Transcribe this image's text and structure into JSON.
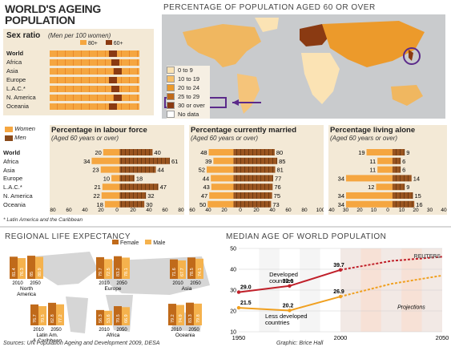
{
  "title_line1": "WORLD'S AGEING",
  "title_line2": "POPULATION",
  "map": {
    "title": "PERCENTAGE OF POPULATION AGED 60 OR OVER",
    "legend": [
      {
        "label": "0 to 9",
        "color": "#fbe3b4"
      },
      {
        "label": "10 to 19",
        "color": "#f7c069"
      },
      {
        "label": "20 to 24",
        "color": "#ec9a2b"
      },
      {
        "label": "25 to 29",
        "color": "#c06a1a"
      },
      {
        "label": "30 or over",
        "color": "#8a3a12"
      },
      {
        "label": "No data",
        "color": "#ffffff"
      }
    ]
  },
  "sex_ratio": {
    "title": "Sex ratio",
    "subtitle": "(Men per 100 women)",
    "legend": [
      "80+",
      "60+"
    ],
    "regions": [
      "World",
      "Africa",
      "Asia",
      "Europe",
      "L.A.C.*",
      "N. America",
      "Oceania"
    ]
  },
  "legend_gender": {
    "women": "Women",
    "men": "Men"
  },
  "chart_data": [
    {
      "type": "bar",
      "title": "Percentage in labour force",
      "subtitle": "(Aged 60 years or over)",
      "categories": [
        "World",
        "Africa",
        "Asia",
        "Europe",
        "L.A.C.*",
        "N. America",
        "Oceania"
      ],
      "series": [
        {
          "name": "Women",
          "values": [
            20,
            34,
            23,
            10,
            21,
            22,
            18
          ]
        },
        {
          "name": "Men",
          "values": [
            40,
            61,
            44,
            18,
            47,
            32,
            30
          ]
        }
      ],
      "xticks": [
        "80",
        "60",
        "40",
        "20",
        "0",
        "20",
        "40",
        "60",
        "80"
      ]
    },
    {
      "type": "bar",
      "title": "Percentage currently married",
      "subtitle": "(Aged 60 years or over)",
      "categories": [
        "World",
        "Africa",
        "Asia",
        "Europe",
        "L.A.C.*",
        "N. America",
        "Oceania"
      ],
      "series": [
        {
          "name": "Women",
          "values": [
            48,
            39,
            52,
            44,
            43,
            47,
            50
          ]
        },
        {
          "name": "Men",
          "values": [
            80,
            85,
            81,
            77,
            76,
            75,
            73
          ]
        }
      ],
      "xticks": [
        "60",
        "40",
        "20",
        "0",
        "20",
        "40",
        "60",
        "80",
        "100"
      ]
    },
    {
      "type": "bar",
      "title": "Percentage living alone",
      "subtitle": "(Aged 60 years or over)",
      "categories": [
        "World",
        "Africa",
        "Asia",
        "Europe",
        "L.A.C.*",
        "N. America",
        "Oceania"
      ],
      "series": [
        {
          "name": "Women",
          "values": [
            19,
            11,
            11,
            34,
            12,
            34,
            34
          ]
        },
        {
          "name": "Men",
          "values": [
            9,
            6,
            6,
            14,
            9,
            15,
            16
          ]
        }
      ],
      "xticks": [
        "40",
        "30",
        "20",
        "10",
        "0",
        "10",
        "20",
        "30",
        "40"
      ]
    },
    {
      "type": "bar",
      "title": "REGIONAL LIFE EXPECTANCY",
      "legend": [
        "Female",
        "Male"
      ],
      "groups": [
        {
          "region": "North America",
          "years": [
            "2010",
            "2050"
          ],
          "female": [
            81.4,
            85.0
          ],
          "male": [
            76.3,
            80.9
          ]
        },
        {
          "region": "Europe",
          "years": [
            "2010",
            "2050"
          ],
          "female": [
            79.7,
            83.2
          ],
          "male": [
            72.5,
            78.1
          ]
        },
        {
          "region": "Asia",
          "years": [
            "2010",
            "2050"
          ],
          "female": [
            71.6,
            78.5
          ],
          "male": [
            67.7,
            74.1
          ]
        },
        {
          "region": "Latin Am. & Caribbean",
          "years": [
            "2010",
            "2050"
          ],
          "female": [
            76.7,
            82.8
          ],
          "male": [
            70.5,
            77.2
          ]
        },
        {
          "region": "Africa",
          "years": [
            "2010",
            "2050"
          ],
          "female": [
            56.3,
            70.5
          ],
          "male": [
            53.6,
            66.9
          ]
        },
        {
          "region": "Oceania",
          "years": [
            "2010",
            "2050"
          ],
          "female": [
            79.2,
            83.3
          ],
          "male": [
            74.9,
            79.8
          ]
        }
      ]
    },
    {
      "type": "line",
      "title": "MEDIAN AGE OF WORLD POPULATION",
      "x": [
        1950,
        1975,
        2000,
        2025,
        2050
      ],
      "xticks": [
        "1950",
        "2000",
        "2050"
      ],
      "yticks": [
        "10",
        "20",
        "30",
        "40",
        "50"
      ],
      "ylim": [
        10,
        50
      ],
      "series": [
        {
          "name": "Developed countries",
          "values": [
            29.0,
            32.0,
            39.7,
            44.0,
            46.0
          ]
        },
        {
          "name": "Less developed countries",
          "values": [
            21.5,
            20.2,
            26.9,
            33.0,
            37.0
          ]
        }
      ],
      "annotation": "Projections"
    }
  ],
  "footnote": "* Latin America and the Caribbean",
  "source": "Sources: UN Population Ageing and Development 2009, DESA",
  "graphic": "Graphic: Brice Hall",
  "brand": "REUTERS"
}
